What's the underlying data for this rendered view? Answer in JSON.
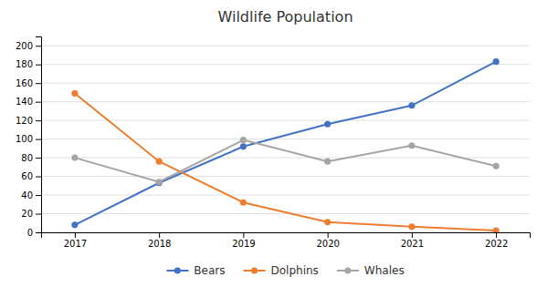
{
  "chart_data": {
    "type": "line",
    "title": "Wildlife Population",
    "x": [
      2017,
      2018,
      2019,
      2020,
      2021,
      2022
    ],
    "xlim": [
      2016.6,
      2022.4
    ],
    "xticks": [
      2017,
      2018,
      2019,
      2020,
      2021,
      2022
    ],
    "series": [
      {
        "name": "Bears",
        "color": "#4472C4",
        "marker": "circle",
        "values": [
          8,
          53,
          92,
          116,
          136,
          183
        ]
      },
      {
        "name": "Dolphins",
        "color": "#ED7D31",
        "marker": "circle",
        "values": [
          149,
          76,
          32,
          11,
          6,
          2
        ]
      },
      {
        "name": "Whales",
        "color": "#A5A5A5",
        "marker": "circle",
        "values": [
          80,
          54,
          99,
          76,
          93,
          71
        ]
      }
    ],
    "ylim": [
      0,
      210
    ],
    "yticks": [
      0,
      20,
      40,
      60,
      80,
      100,
      120,
      140,
      160,
      180,
      200
    ],
    "grid": true,
    "legend": "bottom"
  }
}
